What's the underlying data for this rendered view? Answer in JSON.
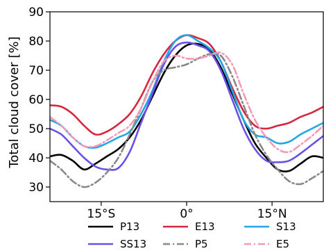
{
  "chart_data": {
    "type": "line",
    "xlabel": "",
    "ylabel": "Total cloud cover [%]",
    "xlim": [
      -24,
      24
    ],
    "ylim": [
      25,
      90
    ],
    "yticks": [
      30,
      40,
      50,
      60,
      70,
      80,
      90
    ],
    "xticks": [
      {
        "value": -15,
        "label": "15°S"
      },
      {
        "value": 0,
        "label": "0°"
      },
      {
        "value": 15,
        "label": "15°N"
      }
    ],
    "grid": false,
    "legend": "below",
    "series": [
      {
        "name": "P13",
        "color": "#000000",
        "dash": "solid",
        "points": [
          [
            -24,
            40.5
          ],
          [
            -22,
            41
          ],
          [
            -20,
            39
          ],
          [
            -18,
            36
          ],
          [
            -16,
            38
          ],
          [
            -14,
            40.5
          ],
          [
            -12,
            43
          ],
          [
            -10,
            47
          ],
          [
            -8,
            53
          ],
          [
            -6,
            61
          ],
          [
            -4,
            69
          ],
          [
            -2,
            75
          ],
          [
            0,
            78.5
          ],
          [
            2,
            79
          ],
          [
            4,
            77
          ],
          [
            6,
            71
          ],
          [
            8,
            62
          ],
          [
            10,
            53
          ],
          [
            12,
            45
          ],
          [
            14,
            40
          ],
          [
            16,
            36
          ],
          [
            18,
            35.5
          ],
          [
            20,
            38
          ],
          [
            22,
            40.5
          ],
          [
            24,
            40
          ]
        ]
      },
      {
        "name": "E13",
        "color": "#d7263d",
        "dash": "solid",
        "points": [
          [
            -24,
            58
          ],
          [
            -22,
            57.5
          ],
          [
            -20,
            55
          ],
          [
            -18,
            51
          ],
          [
            -16,
            48
          ],
          [
            -14,
            49
          ],
          [
            -12,
            51.5
          ],
          [
            -10,
            55
          ],
          [
            -8,
            61
          ],
          [
            -6,
            69
          ],
          [
            -4,
            75.5
          ],
          [
            -2,
            80
          ],
          [
            0,
            82
          ],
          [
            2,
            81
          ],
          [
            4,
            79
          ],
          [
            6,
            73
          ],
          [
            8,
            64
          ],
          [
            10,
            56
          ],
          [
            12,
            51
          ],
          [
            14,
            50
          ],
          [
            16,
            51
          ],
          [
            18,
            52
          ],
          [
            20,
            54
          ],
          [
            22,
            55.5
          ],
          [
            24,
            57.5
          ]
        ]
      },
      {
        "name": "S13",
        "color": "#1fa7e8",
        "dash": "solid",
        "points": [
          [
            -24,
            53
          ],
          [
            -22,
            51
          ],
          [
            -20,
            47
          ],
          [
            -18,
            44
          ],
          [
            -16,
            43.5
          ],
          [
            -14,
            45
          ],
          [
            -12,
            47
          ],
          [
            -10,
            49
          ],
          [
            -8,
            55
          ],
          [
            -6,
            63
          ],
          [
            -4,
            73
          ],
          [
            -2,
            80
          ],
          [
            0,
            82
          ],
          [
            2,
            80
          ],
          [
            4,
            77.5
          ],
          [
            6,
            73
          ],
          [
            8,
            63
          ],
          [
            10,
            53
          ],
          [
            12,
            48
          ],
          [
            14,
            47
          ],
          [
            16,
            45
          ],
          [
            18,
            45.5
          ],
          [
            20,
            48
          ],
          [
            22,
            50
          ],
          [
            24,
            52
          ]
        ]
      },
      {
        "name": "SS13",
        "color": "#6a4fe8",
        "dash": "solid",
        "points": [
          [
            -24,
            50
          ],
          [
            -22,
            48
          ],
          [
            -20,
            44
          ],
          [
            -18,
            40
          ],
          [
            -16,
            37
          ],
          [
            -14,
            36
          ],
          [
            -12,
            36.5
          ],
          [
            -10,
            42
          ],
          [
            -8,
            52
          ],
          [
            -6,
            62
          ],
          [
            -4,
            72
          ],
          [
            -2,
            78
          ],
          [
            0,
            79.5
          ],
          [
            2,
            78.5
          ],
          [
            4,
            76.5
          ],
          [
            6,
            70
          ],
          [
            8,
            60
          ],
          [
            10,
            50
          ],
          [
            12,
            43
          ],
          [
            14,
            39
          ],
          [
            16,
            38.5
          ],
          [
            18,
            39
          ],
          [
            20,
            41.5
          ],
          [
            22,
            44.5
          ],
          [
            24,
            47.5
          ]
        ]
      },
      {
        "name": "P5",
        "color": "#888888",
        "dash": "dashdot",
        "points": [
          [
            -24,
            39
          ],
          [
            -22,
            36
          ],
          [
            -20,
            32
          ],
          [
            -18,
            30
          ],
          [
            -16,
            31.5
          ],
          [
            -14,
            35
          ],
          [
            -12,
            40
          ],
          [
            -10,
            48
          ],
          [
            -8,
            57
          ],
          [
            -6,
            66
          ],
          [
            -4,
            70
          ],
          [
            -2,
            71
          ],
          [
            0,
            72
          ],
          [
            2,
            74
          ],
          [
            4,
            75.5
          ],
          [
            6,
            75
          ],
          [
            8,
            68
          ],
          [
            10,
            58
          ],
          [
            12,
            48
          ],
          [
            14,
            41
          ],
          [
            16,
            36
          ],
          [
            18,
            32
          ],
          [
            20,
            31
          ],
          [
            22,
            33
          ],
          [
            24,
            35.5
          ]
        ]
      },
      {
        "name": "E5",
        "color": "#f59ab5",
        "dash": "dashdot",
        "points": [
          [
            -24,
            54
          ],
          [
            -22,
            51
          ],
          [
            -20,
            47
          ],
          [
            -18,
            44
          ],
          [
            -16,
            44
          ],
          [
            -14,
            46
          ],
          [
            -12,
            48.5
          ],
          [
            -10,
            51
          ],
          [
            -8,
            57
          ],
          [
            -6,
            66
          ],
          [
            -4,
            73
          ],
          [
            -2,
            75
          ],
          [
            0,
            74
          ],
          [
            2,
            74
          ],
          [
            4,
            75
          ],
          [
            6,
            76
          ],
          [
            8,
            72
          ],
          [
            10,
            62
          ],
          [
            12,
            53
          ],
          [
            14,
            47
          ],
          [
            16,
            43
          ],
          [
            18,
            42
          ],
          [
            20,
            44.5
          ],
          [
            22,
            47.5
          ],
          [
            24,
            51
          ]
        ]
      }
    ]
  }
}
